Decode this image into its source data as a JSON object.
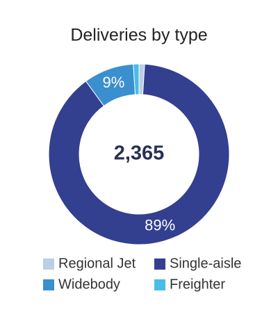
{
  "chart_data": {
    "type": "donut",
    "title": "Deliveries by type",
    "categories": [
      "Regional Jet",
      "Single-aisle",
      "Widebody",
      "Freighter"
    ],
    "values": [
      1,
      89,
      9,
      1
    ],
    "value_labels": [
      null,
      "89%",
      "9%",
      null
    ],
    "colors": [
      "#b9cfe8",
      "#333f8f",
      "#3a8fcf",
      "#47bde8"
    ],
    "total": {
      "value": 2365,
      "label": "2,365"
    }
  }
}
